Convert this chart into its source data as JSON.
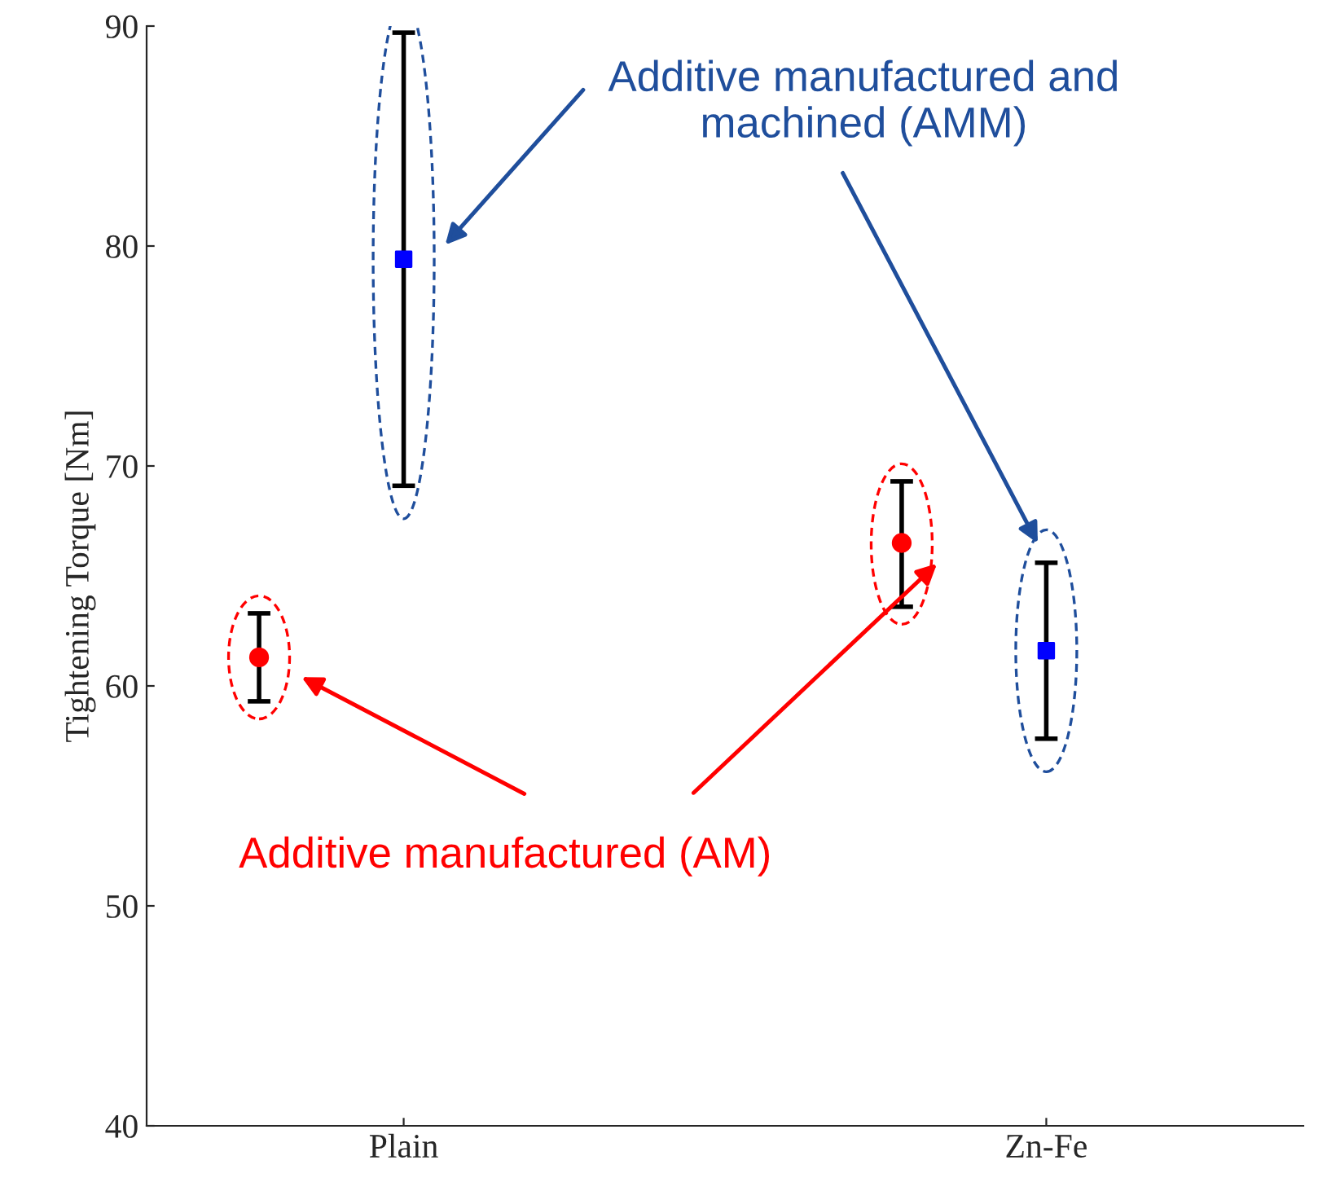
{
  "chart_data": {
    "type": "scatter",
    "ylabel": "Tightening Torque [Nm]",
    "categories": [
      "Plain",
      "Zn-Fe"
    ],
    "series": [
      {
        "color": "#ff0000",
        "marker": "circle",
        "values": [
          61.3,
          66.5
        ],
        "errors": [
          [
            59.3,
            63.3
          ],
          [
            63.6,
            69.3
          ]
        ]
      },
      {
        "color": "#0000ff",
        "marker": "square",
        "values": [
          79.4,
          61.6
        ],
        "errors": [
          [
            69.1,
            89.7
          ],
          [
            57.6,
            65.6
          ]
        ]
      }
    ],
    "ylim": [
      40,
      90
    ],
    "yticks": [
      40,
      50,
      60,
      70,
      80,
      90
    ],
    "annotations": [
      "Additive manufactured (AM)",
      "Additive manufactured and\nmachined (AMM)"
    ],
    "grid": false,
    "legend": false
  }
}
